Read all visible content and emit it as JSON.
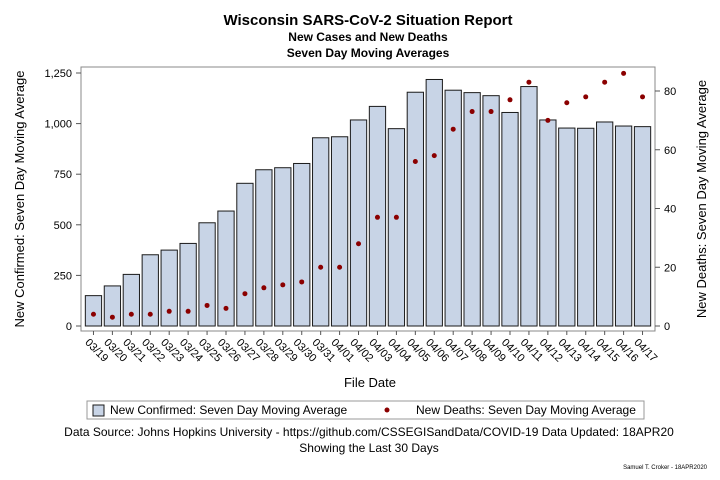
{
  "title": "Wisconsin SARS-CoV-2 Situation Report",
  "subtitle1": "New Cases and New Deaths",
  "subtitle2": "Seven Day Moving Averages",
  "footnote1": "Data Source: Johns Hopkins University - https://github.com/CSSEGISandData/COVID-19 Data Updated: 18APR20",
  "footnote2": "Showing the Last 30 Days",
  "signature": "Samuel T. Croker - 18APR2020",
  "colors": {
    "bar_fill": "#c8d4e6",
    "bar_stroke": "#1a1a1a",
    "dot": "#8b0000"
  },
  "chart_data": {
    "type": "bar",
    "xlabel": "File Date",
    "ylabel": "New Confirmed: Seven Day Moving Average",
    "y2label": "New Deaths: Seven Day Moving Average",
    "ylim": [
      0,
      1300
    ],
    "y2lim": [
      0,
      87
    ],
    "yticks": [
      0,
      250,
      500,
      750,
      1000,
      1250
    ],
    "ytick_labels": [
      "0",
      "250",
      "500",
      "750",
      "1,000",
      "1,250"
    ],
    "y2ticks": [
      0,
      20,
      40,
      60,
      80
    ],
    "categories": [
      "03/19",
      "03/20",
      "03/21",
      "03/22",
      "03/23",
      "03/24",
      "03/25",
      "03/26",
      "03/27",
      "03/28",
      "03/29",
      "03/30",
      "03/31",
      "04/01",
      "04/02",
      "04/03",
      "04/04",
      "04/05",
      "04/06",
      "04/07",
      "04/08",
      "04/09",
      "04/10",
      "04/11",
      "04/12",
      "04/13",
      "04/14",
      "04/15",
      "04/16",
      "04/17"
    ],
    "series": [
      {
        "name": "New Confirmed: Seven Day Moving Average",
        "type": "bar",
        "axis": "left",
        "values": [
          150,
          198,
          255,
          352,
          375,
          408,
          510,
          568,
          705,
          772,
          782,
          803,
          930,
          935,
          1018,
          1085,
          975,
          1155,
          1218,
          1165,
          1153,
          1138,
          1055,
          1183,
          1018,
          978,
          977,
          1008,
          988,
          985
        ]
      },
      {
        "name": "New Deaths: Seven Day Moving Average",
        "type": "scatter",
        "axis": "right",
        "values": [
          4,
          3,
          4,
          4,
          5,
          5,
          7,
          6,
          11,
          13,
          14,
          15,
          20,
          20,
          28,
          37,
          37,
          56,
          58,
          67,
          73,
          73,
          77,
          83,
          70,
          76,
          78,
          83,
          86,
          78
        ]
      }
    ],
    "legend_position": "bottom"
  }
}
